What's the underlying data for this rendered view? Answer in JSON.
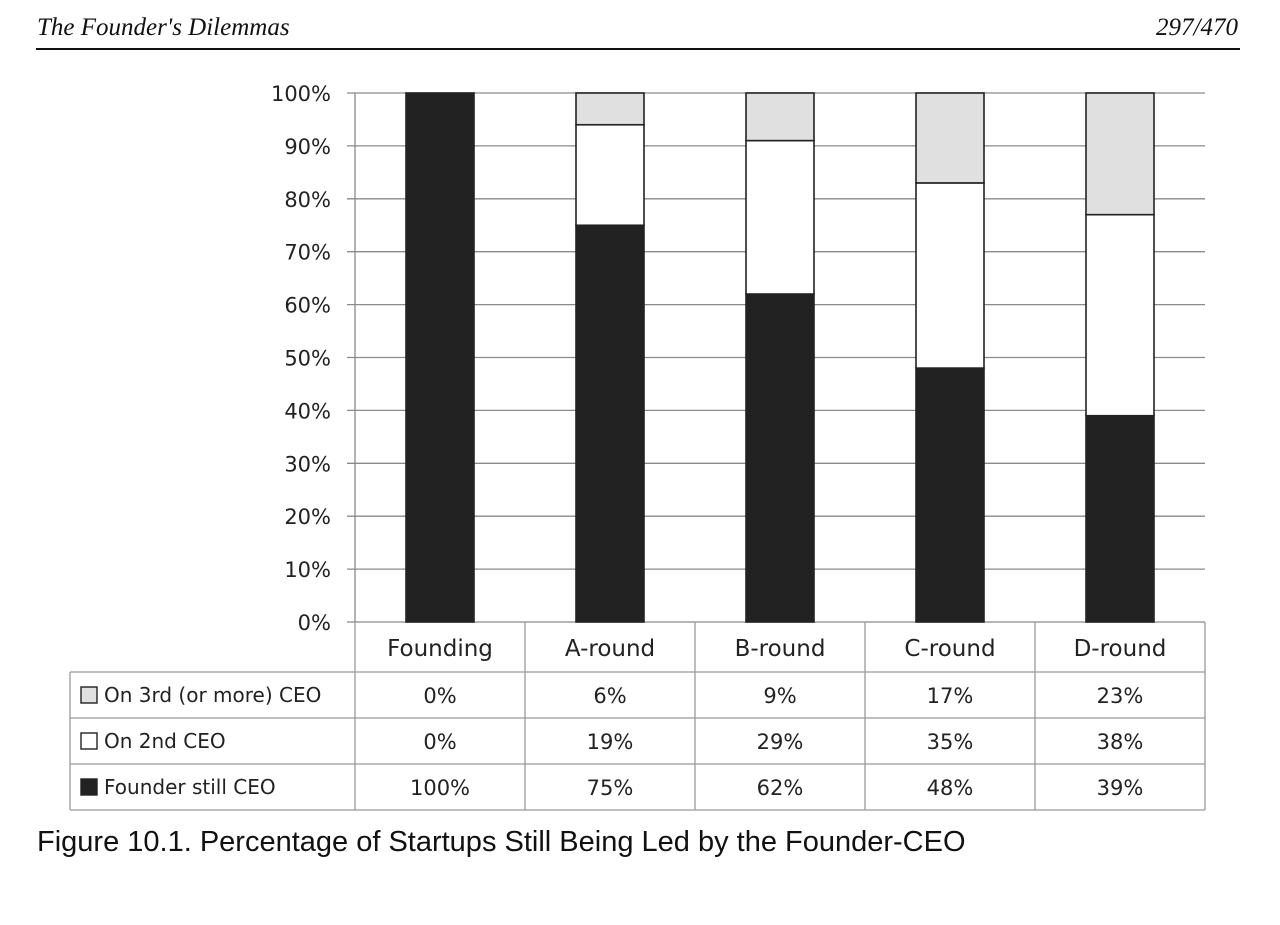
{
  "header": {
    "book_title": "The Founder's Dilemmas",
    "page_number": "297/470"
  },
  "caption": "Figure 10.1. Percentage of Startups Still Being Led by the Founder-CEO",
  "chart_data": {
    "type": "bar",
    "stacked": true,
    "categories": [
      "Founding",
      "A-round",
      "B-round",
      "C-round",
      "D-round"
    ],
    "series": [
      {
        "name": "Founder still CEO",
        "values": [
          100,
          75,
          62,
          48,
          39
        ],
        "labels": [
          "100%",
          "75%",
          "62%",
          "48%",
          "39%"
        ],
        "color": "#222222"
      },
      {
        "name": "On 2nd CEO",
        "values": [
          0,
          19,
          29,
          35,
          38
        ],
        "labels": [
          "0%",
          "19%",
          "29%",
          "35%",
          "38%"
        ],
        "color": "#ffffff"
      },
      {
        "name": "On 3rd (or more) CEO",
        "values": [
          0,
          6,
          9,
          17,
          23
        ],
        "labels": [
          "0%",
          "6%",
          "9%",
          "17%",
          "23%"
        ],
        "color": "#e0e0e0"
      }
    ],
    "table_row_order": [
      "On 3rd (or more) CEO",
      "On 2nd CEO",
      "Founder still CEO"
    ],
    "ylim": [
      0,
      100
    ],
    "yticks": [
      0,
      10,
      20,
      30,
      40,
      50,
      60,
      70,
      80,
      90,
      100
    ],
    "ytick_labels": [
      "0%",
      "10%",
      "20%",
      "30%",
      "40%",
      "50%",
      "60%",
      "70%",
      "80%",
      "90%",
      "100%"
    ],
    "grid": true,
    "legend": "data-table-below",
    "title": "",
    "xlabel": "",
    "ylabel": ""
  }
}
